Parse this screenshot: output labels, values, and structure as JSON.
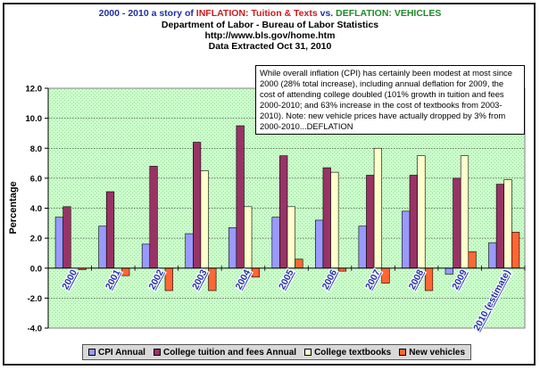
{
  "header": {
    "title_part_1": "2000 - 2010 a story of ",
    "title_part_2": "INFLATION: Tuition & Texts",
    "title_part_3": " vs. ",
    "title_part_4": "DEFLATION: VEHICLES",
    "subtitle_1": "Department of Labor - Bureau of Labor Statistics",
    "subtitle_2": "http://www.bls.gov/home.htm",
    "subtitle_3": "Data Extracted Oct 31, 2010"
  },
  "annotation": {
    "text": "While overall inflation (CPI) has certainly been modest at most since 2000 (28% total increase), including annual deflation for 2009, the cost of attending college doubled (101% growth in tuition and fees 2000-2010; and 63% increase in the cost of textbooks from 2003-2010). Note: new vehicle prices have actually dropped by 3% from 2000-2010...DEFLATION"
  },
  "colors": {
    "plot_background": "#ccffcc",
    "cpi": "#9999ff",
    "tuition": "#993366",
    "textbooks": "#ffffcc",
    "vehicles": "#ff6633",
    "category_label": "#1f2fa8"
  },
  "chart_data": {
    "type": "bar",
    "categories": [
      "2000",
      "2001",
      "2002",
      "2003",
      "2004",
      "2005",
      "2006",
      "2007",
      "2008",
      "2009",
      "2010 (estimate)"
    ],
    "series": [
      {
        "name": "CPI Annual",
        "values": [
          3.4,
          2.8,
          1.6,
          2.3,
          2.7,
          3.4,
          3.2,
          2.8,
          3.8,
          -0.4,
          1.7
        ]
      },
      {
        "name": "College tuition and fees Annual",
        "values": [
          4.1,
          5.1,
          6.8,
          8.4,
          9.5,
          7.5,
          6.7,
          6.2,
          6.2,
          6.0,
          5.6
        ]
      },
      {
        "name": "College textbooks",
        "values": [
          null,
          null,
          null,
          6.5,
          4.1,
          4.1,
          6.4,
          8.0,
          7.5,
          7.5,
          5.9
        ]
      },
      {
        "name": "New vehicles",
        "values": [
          -0.1,
          -0.5,
          -1.5,
          -1.5,
          -0.6,
          0.6,
          -0.2,
          -1.0,
          -1.5,
          1.1,
          2.4
        ]
      }
    ],
    "ylabel": "Percentage",
    "ylim": [
      -4.0,
      12.0
    ],
    "yticks": [
      "-4.0",
      "-2.0",
      "0.0",
      "2.0",
      "4.0",
      "6.0",
      "8.0",
      "10.0",
      "12.0"
    ],
    "grid": true,
    "legend": "bottom"
  }
}
